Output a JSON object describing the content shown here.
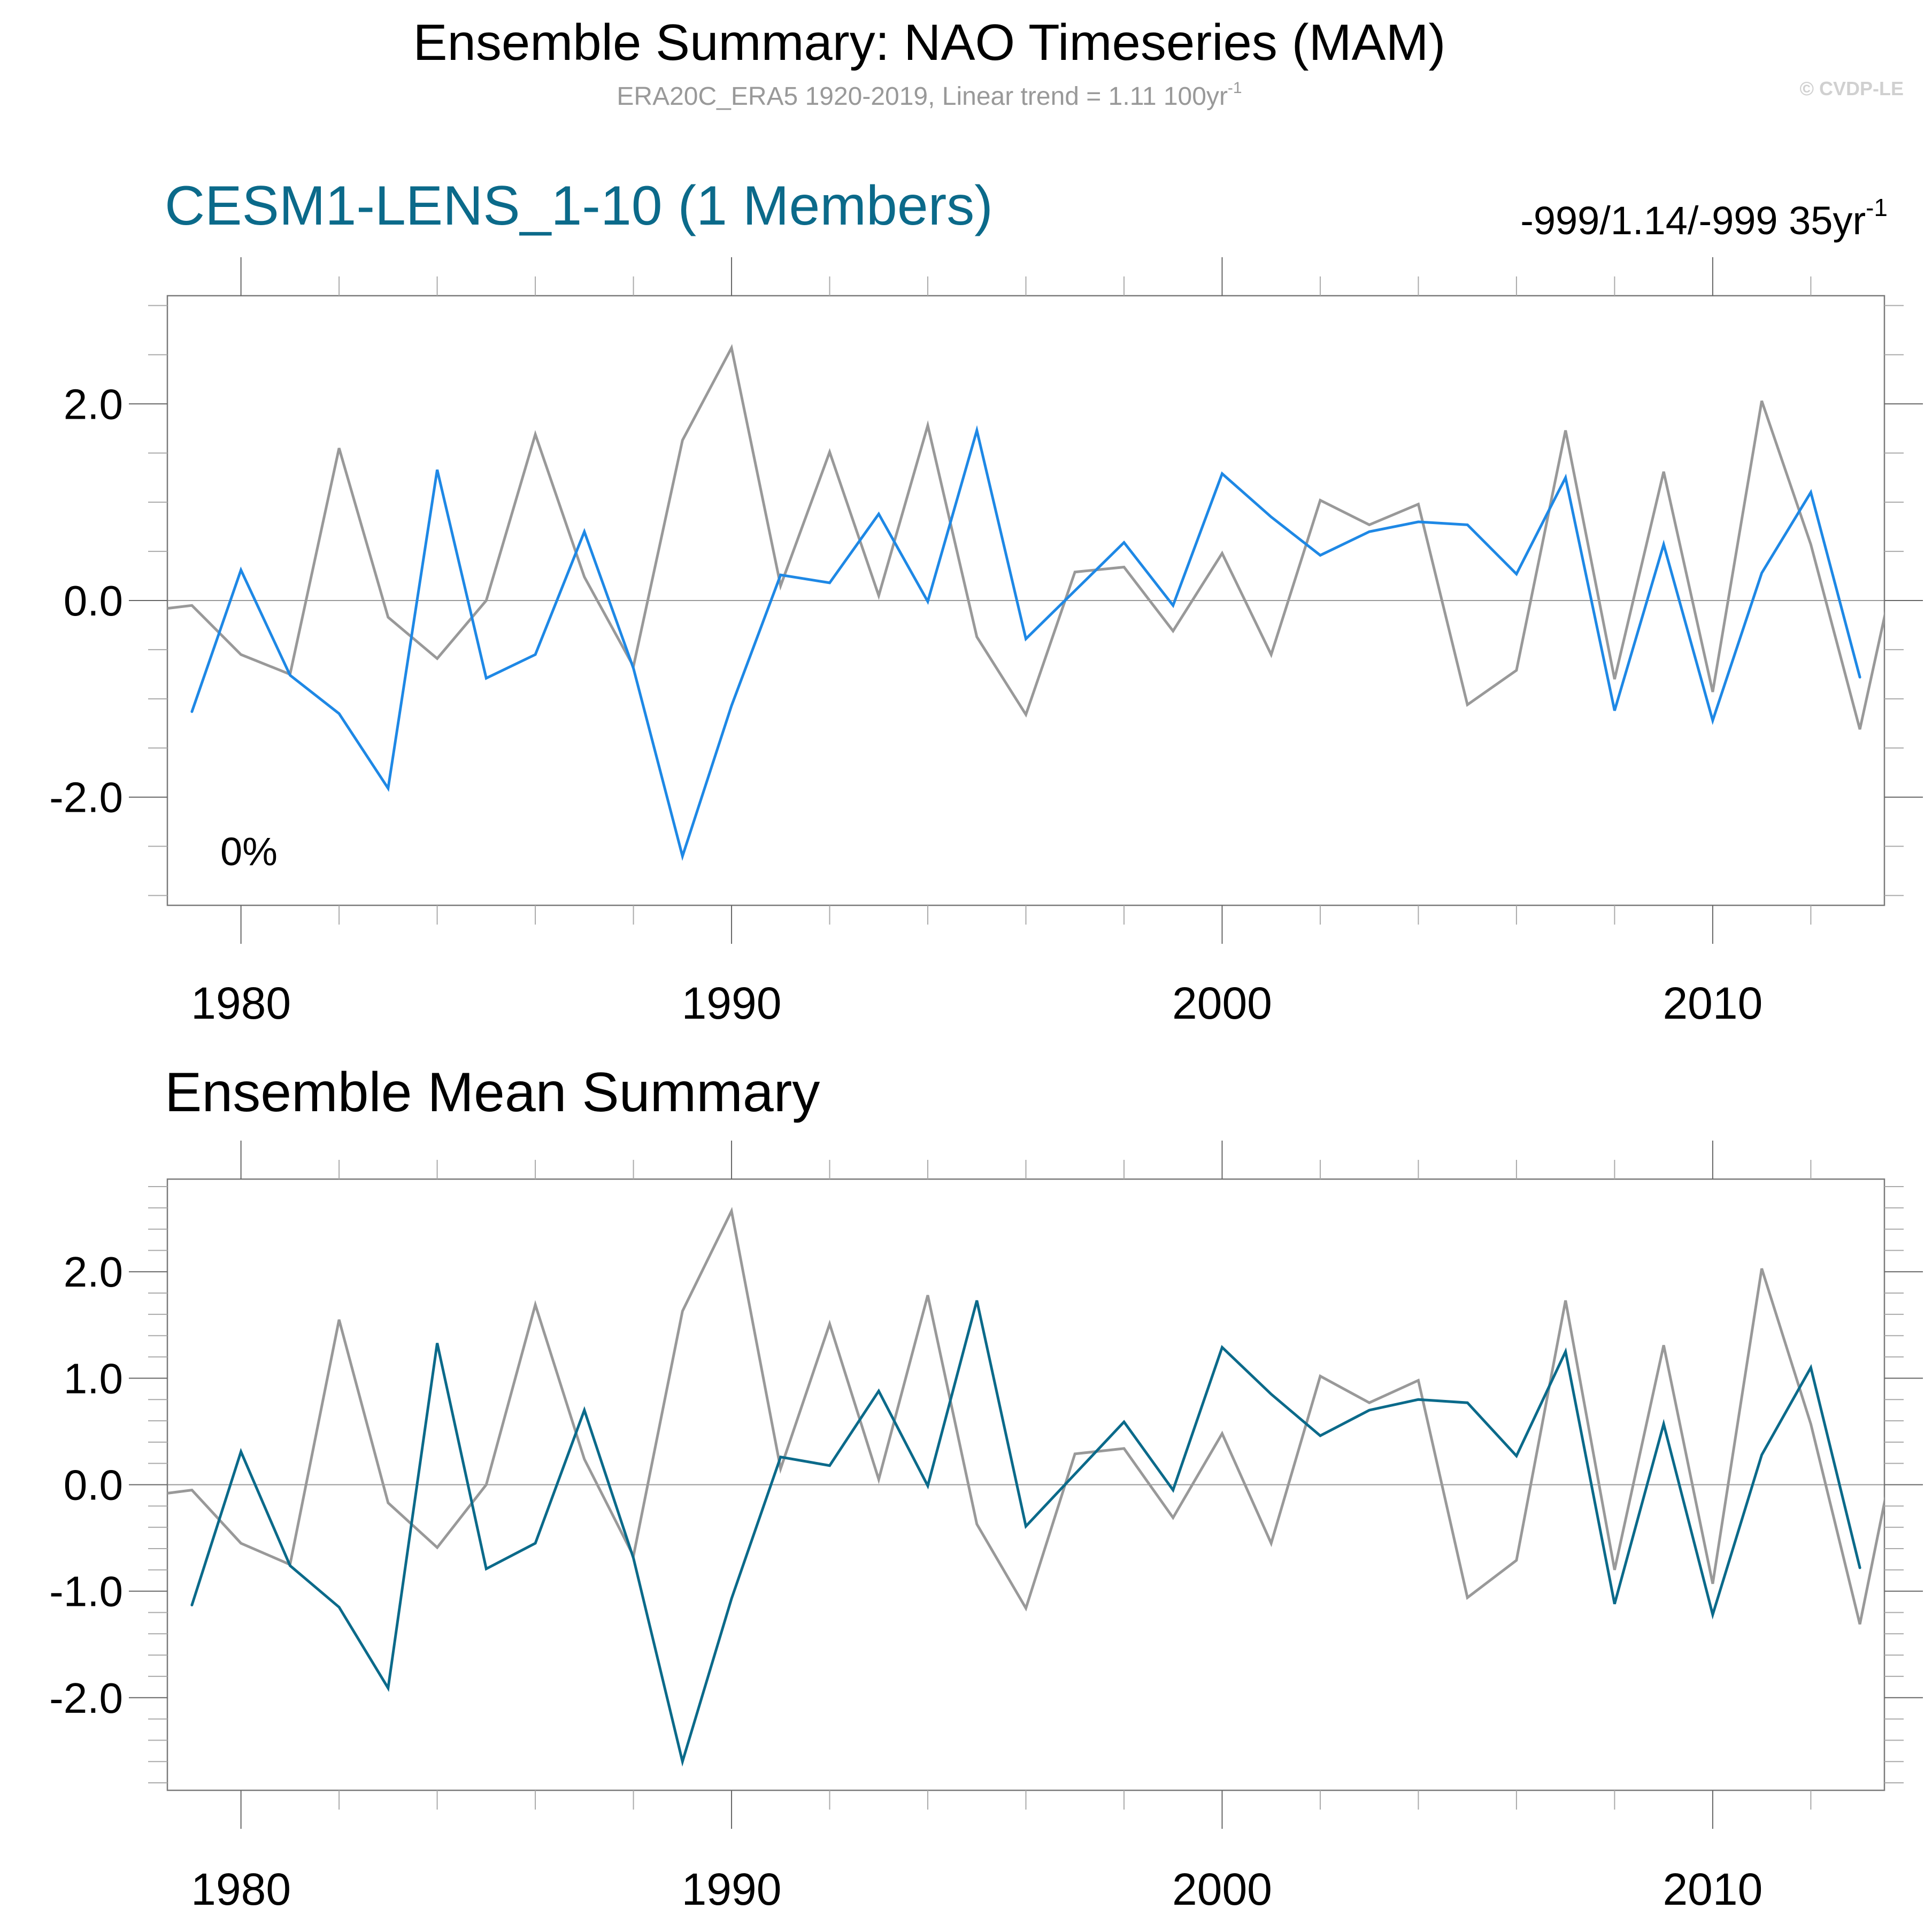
{
  "header": {
    "title": "Ensemble Summary: NAO Timeseries (MAM)",
    "subtitle": "ERA20C_ERA5 1920-2019, Linear trend = 1.11 100yr",
    "subtitle_superscript": "-1",
    "copyright": "© CVDP-LE"
  },
  "colors": {
    "observed": "#999999",
    "member": "#1e88e5",
    "ensemble_mean": "#0b6a8a",
    "panel_title_accent": "#0b6a8a",
    "axis": "#555555",
    "zero_line": "#888888"
  },
  "chart_data": [
    {
      "type": "line",
      "title": "CESM1-LENS_1-10 (1 Members)",
      "right_annotation": "-999/1.14/-999 35yr",
      "right_annotation_superscript": "-1",
      "inset_label": "0%",
      "xlabel": "",
      "ylabel": "",
      "xlim": [
        1978.5,
        2013.5
      ],
      "ylim": [
        -3.1,
        3.1
      ],
      "x_major_ticks": [
        1980,
        1990,
        2000,
        2010
      ],
      "x_tick_labels": [
        "1980",
        "1990",
        "2000",
        "2010"
      ],
      "x_minor_step": 2,
      "y_major_ticks": [
        -2.0,
        0.0,
        2.0
      ],
      "y_tick_labels": [
        "-2.0",
        "0.0",
        "2.0"
      ],
      "y_minor_step": 0.5,
      "zero_line": true,
      "grid": false,
      "legend": "none",
      "x": [
        1978,
        1979,
        1980,
        1981,
        1982,
        1983,
        1984,
        1985,
        1986,
        1987,
        1988,
        1989,
        1990,
        1991,
        1992,
        1993,
        1994,
        1995,
        1996,
        1997,
        1998,
        1999,
        2000,
        2001,
        2002,
        2003,
        2004,
        2005,
        2006,
        2007,
        2008,
        2009,
        2010,
        2011,
        2012,
        2013,
        2014
      ],
      "series": [
        {
          "name": "ERA20C_ERA5 (observed)",
          "color_key": "observed",
          "values": [
            -0.11,
            -0.05,
            -0.55,
            -0.75,
            1.55,
            -0.17,
            -0.59,
            0.0,
            1.69,
            0.24,
            -0.67,
            1.63,
            2.57,
            0.15,
            1.51,
            0.05,
            1.78,
            -0.37,
            -1.16,
            0.29,
            0.34,
            -0.31,
            0.48,
            -0.55,
            1.02,
            0.77,
            0.98,
            -1.06,
            -0.71,
            1.73,
            -0.8,
            1.31,
            -0.93,
            2.03,
            0.57,
            -1.31,
            0.97
          ]
        },
        {
          "name": "CESM1-LENS member 1",
          "color_key": "member",
          "values": [
            null,
            -1.13,
            0.31,
            -0.76,
            -1.15,
            -1.91,
            1.33,
            -0.79,
            -0.55,
            0.7,
            -0.69,
            -2.6,
            -1.07,
            0.26,
            0.18,
            0.88,
            -0.01,
            1.73,
            -0.39,
            0.1,
            0.59,
            -0.05,
            1.29,
            0.85,
            0.46,
            0.7,
            0.8,
            0.77,
            0.27,
            1.25,
            -1.12,
            0.57,
            -1.22,
            0.28,
            1.1,
            -0.78,
            null
          ]
        }
      ]
    },
    {
      "type": "line",
      "title": "Ensemble Mean Summary",
      "xlabel": "",
      "ylabel": "",
      "xlim": [
        1978.5,
        2013.5
      ],
      "ylim": [
        -2.87,
        2.87
      ],
      "x_major_ticks": [
        1980,
        1990,
        2000,
        2010
      ],
      "x_tick_labels": [
        "1980",
        "1990",
        "2000",
        "2010"
      ],
      "x_minor_step": 2,
      "y_major_ticks": [
        -2.0,
        -1.0,
        0.0,
        1.0,
        2.0
      ],
      "y_tick_labels": [
        "-2.0",
        "-1.0",
        "0.0",
        "1.0",
        "2.0"
      ],
      "y_minor_step": 0.2,
      "zero_line": true,
      "grid": false,
      "legend": "none",
      "x": [
        1978,
        1979,
        1980,
        1981,
        1982,
        1983,
        1984,
        1985,
        1986,
        1987,
        1988,
        1989,
        1990,
        1991,
        1992,
        1993,
        1994,
        1995,
        1996,
        1997,
        1998,
        1999,
        2000,
        2001,
        2002,
        2003,
        2004,
        2005,
        2006,
        2007,
        2008,
        2009,
        2010,
        2011,
        2012,
        2013,
        2014
      ],
      "series": [
        {
          "name": "ERA20C_ERA5 (observed)",
          "color_key": "observed",
          "values": [
            -0.11,
            -0.05,
            -0.55,
            -0.75,
            1.55,
            -0.17,
            -0.59,
            0.0,
            1.69,
            0.24,
            -0.67,
            1.63,
            2.57,
            0.15,
            1.51,
            0.05,
            1.78,
            -0.37,
            -1.16,
            0.29,
            0.34,
            -0.31,
            0.48,
            -0.55,
            1.02,
            0.77,
            0.98,
            -1.06,
            -0.71,
            1.73,
            -0.8,
            1.31,
            -0.93,
            2.03,
            0.57,
            -1.31,
            0.97
          ]
        },
        {
          "name": "Ensemble mean",
          "color_key": "ensemble_mean",
          "values": [
            null,
            -1.13,
            0.31,
            -0.76,
            -1.15,
            -1.91,
            1.33,
            -0.79,
            -0.55,
            0.7,
            -0.69,
            -2.6,
            -1.07,
            0.26,
            0.18,
            0.88,
            -0.01,
            1.73,
            -0.39,
            0.1,
            0.59,
            -0.05,
            1.29,
            0.85,
            0.46,
            0.7,
            0.8,
            0.77,
            0.27,
            1.25,
            -1.12,
            0.57,
            -1.22,
            0.28,
            1.1,
            -0.78,
            null
          ]
        }
      ]
    }
  ]
}
